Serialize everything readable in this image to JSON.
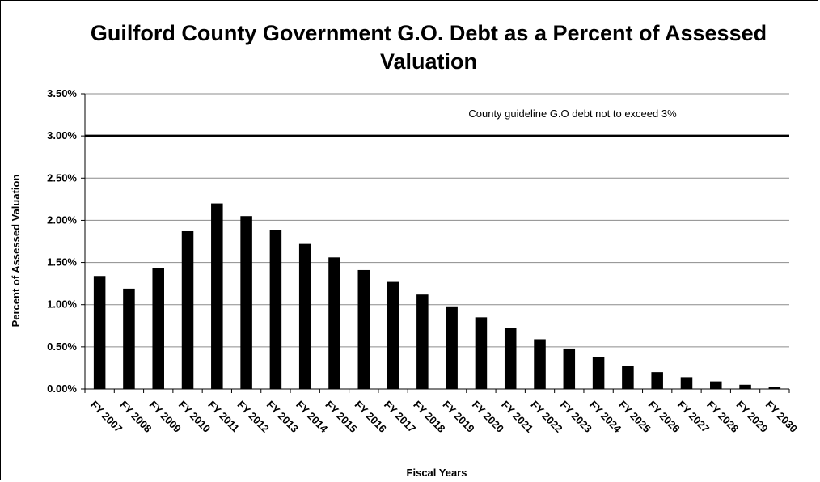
{
  "chart_data": {
    "type": "bar",
    "title": "Guilford County Government G.O. Debt as a Percent of Assessed Valuation",
    "xlabel": "Fiscal Years",
    "ylabel": "Percent of Assessed Valuation",
    "ylim": [
      0,
      3.5
    ],
    "yticks": [
      "0.00%",
      "0.50%",
      "1.00%",
      "1.50%",
      "2.00%",
      "2.50%",
      "3.00%",
      "3.50%"
    ],
    "grid": true,
    "categories": [
      "FY 2007",
      "FY 2008",
      "FY 2009",
      "FY 2010",
      "FY 2011",
      "FY 2012",
      "FY 2013",
      "FY 2014",
      "FY 2015",
      "FY 2016",
      "FY 2017",
      "FY 2018",
      "FY 2019",
      "FY 2020",
      "FY 2021",
      "FY 2022",
      "FY 2023",
      "FY 2024",
      "FY 2025",
      "FY 2026",
      "FY 2027",
      "FY 2028",
      "FY 2029",
      "FY 2030"
    ],
    "values": [
      1.34,
      1.19,
      1.43,
      1.87,
      2.2,
      2.05,
      1.88,
      1.72,
      1.56,
      1.41,
      1.27,
      1.12,
      0.98,
      0.85,
      0.72,
      0.59,
      0.48,
      0.38,
      0.27,
      0.2,
      0.14,
      0.09,
      0.05,
      0.02
    ],
    "bar_color": "#000000",
    "guideline": {
      "value": 3.0,
      "label": "County guideline G.O debt not to exceed 3%"
    }
  }
}
